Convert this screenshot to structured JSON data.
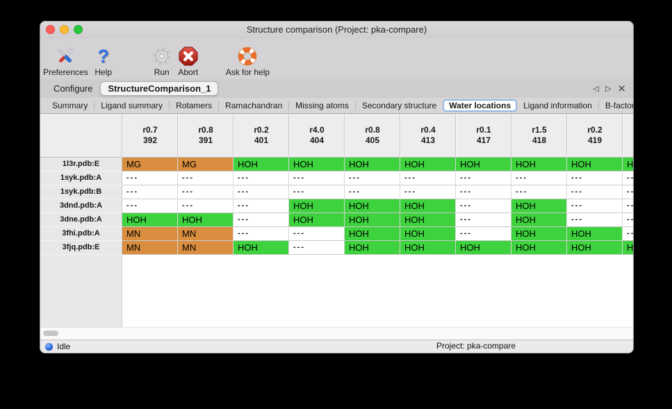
{
  "window": {
    "title": "Structure comparison (Project: pka-compare)"
  },
  "toolbar": {
    "items": [
      {
        "label": "Preferences",
        "icon": "tools-icon"
      },
      {
        "label": "Help",
        "icon": "question-icon"
      },
      {
        "label": "Run",
        "icon": "gear-icon"
      },
      {
        "label": "Abort",
        "icon": "abort-icon"
      },
      {
        "label": "Ask for help",
        "icon": "lifebuoy-icon"
      }
    ]
  },
  "tabs": {
    "items": [
      {
        "label": "Configure",
        "selected": false
      },
      {
        "label": "StructureComparison_1",
        "selected": true
      }
    ],
    "nav": {
      "prev": "◁",
      "next": "▷",
      "close": "×"
    }
  },
  "subtabs": {
    "items": [
      "Summary",
      "Ligand summary",
      "Rotamers",
      "Ramachandran",
      "Missing atoms",
      "Secondary structure",
      "Water locations",
      "Ligand information",
      "B-factors"
    ],
    "selected": "Water locations",
    "nav": {
      "prev": "◁",
      "next": "▷"
    }
  },
  "colors": {
    "green": "#3ed23e",
    "orange": "#d98e3f",
    "tab_highlight": "#92b9ea"
  },
  "water_table": {
    "columns": [
      {
        "line1": "r0.7",
        "line2": "392"
      },
      {
        "line1": "r0.8",
        "line2": "391"
      },
      {
        "line1": "r0.2",
        "line2": "401"
      },
      {
        "line1": "r4.0",
        "line2": "404"
      },
      {
        "line1": "r0.8",
        "line2": "405"
      },
      {
        "line1": "r0.4",
        "line2": "413"
      },
      {
        "line1": "r0.1",
        "line2": "417"
      },
      {
        "line1": "r1.5",
        "line2": "418"
      },
      {
        "line1": "r0.2",
        "line2": "419"
      },
      {
        "line1": "",
        "line2": ""
      }
    ],
    "rows": [
      {
        "label": "1l3r.pdb:E",
        "cells": [
          {
            "text": "MG",
            "status": "orange"
          },
          {
            "text": "MG",
            "status": "orange"
          },
          {
            "text": "HOH",
            "status": "green"
          },
          {
            "text": "HOH",
            "status": "green"
          },
          {
            "text": "HOH",
            "status": "green"
          },
          {
            "text": "HOH",
            "status": "green"
          },
          {
            "text": "HOH",
            "status": "green"
          },
          {
            "text": "HOH",
            "status": "green"
          },
          {
            "text": "HOH",
            "status": "green"
          },
          {
            "text": "HOH",
            "status": "green"
          }
        ]
      },
      {
        "label": "1syk.pdb:A",
        "cells": [
          {
            "text": "---",
            "status": "none"
          },
          {
            "text": "---",
            "status": "none"
          },
          {
            "text": "---",
            "status": "none"
          },
          {
            "text": "---",
            "status": "none"
          },
          {
            "text": "---",
            "status": "none"
          },
          {
            "text": "---",
            "status": "none"
          },
          {
            "text": "---",
            "status": "none"
          },
          {
            "text": "---",
            "status": "none"
          },
          {
            "text": "---",
            "status": "none"
          },
          {
            "text": "---",
            "status": "none"
          }
        ]
      },
      {
        "label": "1syk.pdb:B",
        "cells": [
          {
            "text": "---",
            "status": "none"
          },
          {
            "text": "---",
            "status": "none"
          },
          {
            "text": "---",
            "status": "none"
          },
          {
            "text": "---",
            "status": "none"
          },
          {
            "text": "---",
            "status": "none"
          },
          {
            "text": "---",
            "status": "none"
          },
          {
            "text": "---",
            "status": "none"
          },
          {
            "text": "---",
            "status": "none"
          },
          {
            "text": "---",
            "status": "none"
          },
          {
            "text": "---",
            "status": "none"
          }
        ]
      },
      {
        "label": "3dnd.pdb:A",
        "cells": [
          {
            "text": "---",
            "status": "none"
          },
          {
            "text": "---",
            "status": "none"
          },
          {
            "text": "---",
            "status": "none"
          },
          {
            "text": "HOH",
            "status": "green"
          },
          {
            "text": "HOH",
            "status": "green"
          },
          {
            "text": "HOH",
            "status": "green"
          },
          {
            "text": "---",
            "status": "none"
          },
          {
            "text": "HOH",
            "status": "green"
          },
          {
            "text": "---",
            "status": "none"
          },
          {
            "text": "---",
            "status": "none"
          }
        ]
      },
      {
        "label": "3dne.pdb:A",
        "cells": [
          {
            "text": "HOH",
            "status": "green"
          },
          {
            "text": "HOH",
            "status": "green"
          },
          {
            "text": "---",
            "status": "none"
          },
          {
            "text": "HOH",
            "status": "green"
          },
          {
            "text": "HOH",
            "status": "green"
          },
          {
            "text": "HOH",
            "status": "green"
          },
          {
            "text": "---",
            "status": "none"
          },
          {
            "text": "HOH",
            "status": "green"
          },
          {
            "text": "---",
            "status": "none"
          },
          {
            "text": "---",
            "status": "none"
          }
        ]
      },
      {
        "label": "3fhi.pdb:A",
        "cells": [
          {
            "text": "MN",
            "status": "orange"
          },
          {
            "text": "MN",
            "status": "orange"
          },
          {
            "text": "---",
            "status": "none"
          },
          {
            "text": "---",
            "status": "none"
          },
          {
            "text": "HOH",
            "status": "green"
          },
          {
            "text": "HOH",
            "status": "green"
          },
          {
            "text": "---",
            "status": "none"
          },
          {
            "text": "HOH",
            "status": "green"
          },
          {
            "text": "HOH",
            "status": "green"
          },
          {
            "text": "---",
            "status": "none"
          }
        ]
      },
      {
        "label": "3fjq.pdb:E",
        "cells": [
          {
            "text": "MN",
            "status": "orange"
          },
          {
            "text": "MN",
            "status": "orange"
          },
          {
            "text": "HOH",
            "status": "green"
          },
          {
            "text": "---",
            "status": "none"
          },
          {
            "text": "HOH",
            "status": "green"
          },
          {
            "text": "HOH",
            "status": "green"
          },
          {
            "text": "HOH",
            "status": "green"
          },
          {
            "text": "HOH",
            "status": "green"
          },
          {
            "text": "HOH",
            "status": "green"
          },
          {
            "text": "HOH",
            "status": "green"
          }
        ]
      }
    ]
  },
  "statusbar": {
    "state": "Idle",
    "project": "Project: pka-compare"
  }
}
